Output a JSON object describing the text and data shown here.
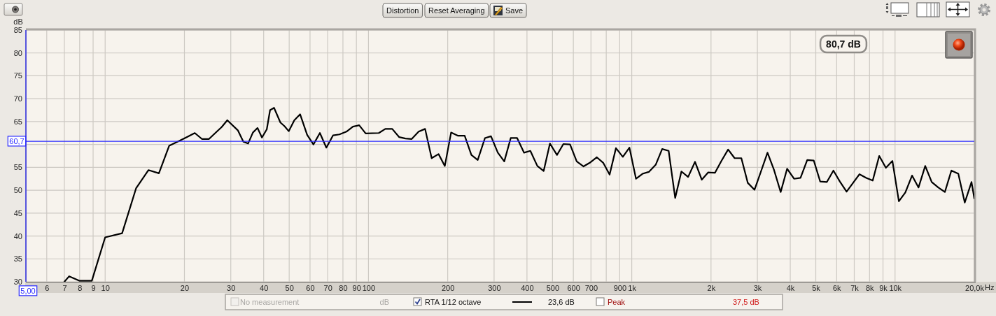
{
  "chart_data": {
    "type": "line",
    "xlabel": "Hz",
    "ylabel": "dB",
    "x": [
      7.0,
      7.3,
      8.0,
      8.9,
      10.0,
      11.6,
      13.1,
      14.6,
      16.0,
      17.5,
      19.0,
      20.4,
      21.9,
      23.3,
      24.8,
      26.2,
      27.7,
      29.1,
      31.9,
      33.5,
      34.9,
      36.4,
      37.9,
      39.4,
      41.1,
      42.3,
      43.8,
      46.3,
      48.0,
      49.8,
      52.3,
      55.0,
      58.5,
      61.8,
      65.4,
      69.2,
      73.4,
      77.6,
      82.5,
      87.3,
      92.2,
      97.6,
      109.5,
      115.9,
      123.1,
      130.9,
      138.2,
      146.0,
      155.1,
      164.1,
      173.8,
      184.6,
      195,
      206,
      219,
      232,
      246,
      260,
      277,
      292,
      310,
      328,
      347,
      367,
      390,
      412,
      438,
      463,
      489,
      520,
      550,
      583,
      618,
      656,
      693,
      737,
      779,
      824,
      871,
      925,
      980,
      1038,
      1099,
      1161,
      1234,
      1305,
      1381,
      1462,
      1544,
      1637,
      1739,
      1845,
      1952,
      2070,
      2190,
      2323,
      2459,
      2608,
      2759,
      2926,
      3096,
      3278,
      3467,
      3678,
      3892,
      4136,
      4375,
      4640,
      4911,
      5197,
      5510,
      5834,
      6171,
      6546,
      6927,
      7328,
      7775,
      8226,
      8708,
      9231,
      9772,
      10340,
      10940,
      11605,
      12280,
      13020,
      13780,
      14590,
      15460,
      16370,
      17390,
      18400,
      19520,
      20000
    ],
    "series": [
      {
        "name": "RTA 1/12 octave",
        "color": "#000000",
        "values": [
          30.0,
          31.2,
          30.2,
          30.2,
          39.7,
          40.6,
          50.4,
          54.4,
          53.7,
          59.7,
          60.7,
          61.6,
          62.5,
          61.2,
          61.2,
          62.5,
          63.8,
          65.3,
          63.1,
          60.6,
          60.2,
          62.6,
          63.6,
          61.5,
          63.3,
          67.5,
          68.0,
          64.8,
          64.0,
          62.9,
          65.3,
          66.6,
          62.1,
          60.0,
          62.5,
          59.3,
          62.0,
          62.2,
          62.8,
          63.9,
          64.2,
          62.4,
          62.5,
          63.4,
          63.4,
          61.6,
          61.3,
          61.2,
          62.8,
          63.4,
          57.0,
          57.9,
          55.3,
          62.6,
          61.9,
          61.9,
          57.7,
          56.6,
          61.4,
          61.8,
          58.2,
          56.3,
          61.4,
          61.4,
          58.2,
          58.6,
          55.3,
          54.2,
          60.2,
          57.7,
          60.1,
          60.0,
          56.3,
          55.2,
          56.0,
          57.2,
          56.0,
          53.4,
          59.2,
          57.3,
          59.3,
          52.5,
          53.6,
          54.0,
          55.6,
          59.0,
          58.6,
          48.3,
          54.1,
          52.9,
          56.2,
          52.3,
          53.9,
          53.8,
          56.4,
          58.9,
          57.0,
          57.0,
          51.6,
          50.1,
          54.1,
          58.2,
          54.5,
          49.6,
          54.7,
          52.5,
          52.7,
          56.6,
          56.5,
          51.9,
          51.8,
          54.3,
          51.9,
          49.7,
          51.6,
          53.5,
          52.7,
          52.1,
          57.5,
          54.9,
          56.4,
          47.6,
          49.5,
          53.2,
          50.6,
          55.3,
          51.8,
          50.6,
          49.6,
          54.3,
          53.6,
          47.3,
          51.8,
          48.2
        ]
      }
    ],
    "xlim": [
      5,
      20000
    ],
    "ylim": [
      30,
      85
    ],
    "log": "x",
    "xticks": [
      {
        "value": 5,
        "label": null
      },
      6,
      7,
      8,
      9,
      10,
      20,
      30,
      40,
      50,
      60,
      70,
      80,
      90,
      100,
      200,
      300,
      400,
      500,
      600,
      700,
      {
        "value": 800,
        "label": null
      },
      900,
      {
        "value": 1000,
        "label": "1k"
      },
      {
        "value": 2000,
        "label": "2k"
      },
      {
        "value": 3000,
        "label": "3k"
      },
      {
        "value": 4000,
        "label": "4k"
      },
      {
        "value": 5000,
        "label": "5k"
      },
      {
        "value": 6000,
        "label": "6k"
      },
      {
        "value": 7000,
        "label": "7k"
      },
      {
        "value": 8000,
        "label": "8k"
      },
      {
        "value": 9000,
        "label": "9k"
      },
      {
        "value": 10000,
        "label": "10k"
      },
      {
        "value": 20000,
        "label": "20,0k"
      }
    ],
    "yticks": [
      30,
      35,
      40,
      45,
      50,
      55,
      {
        "value": 60,
        "label": null
      },
      65,
      70,
      75,
      80,
      85
    ],
    "grid": true,
    "legend": "bottom",
    "ref_lines": [
      {
        "axis": "y",
        "value": 60.7,
        "label": "60,7",
        "color": "#2a2aff"
      },
      {
        "axis": "x",
        "value": 5,
        "label": "5,00",
        "color": "#2a2aff"
      }
    ],
    "annotations": [
      "Distortion",
      "Reset Averaging",
      "Save",
      "80,7 dB",
      "No measurement",
      "dB",
      "23,6 dB",
      "Peak",
      "37,5 dB"
    ]
  }
}
